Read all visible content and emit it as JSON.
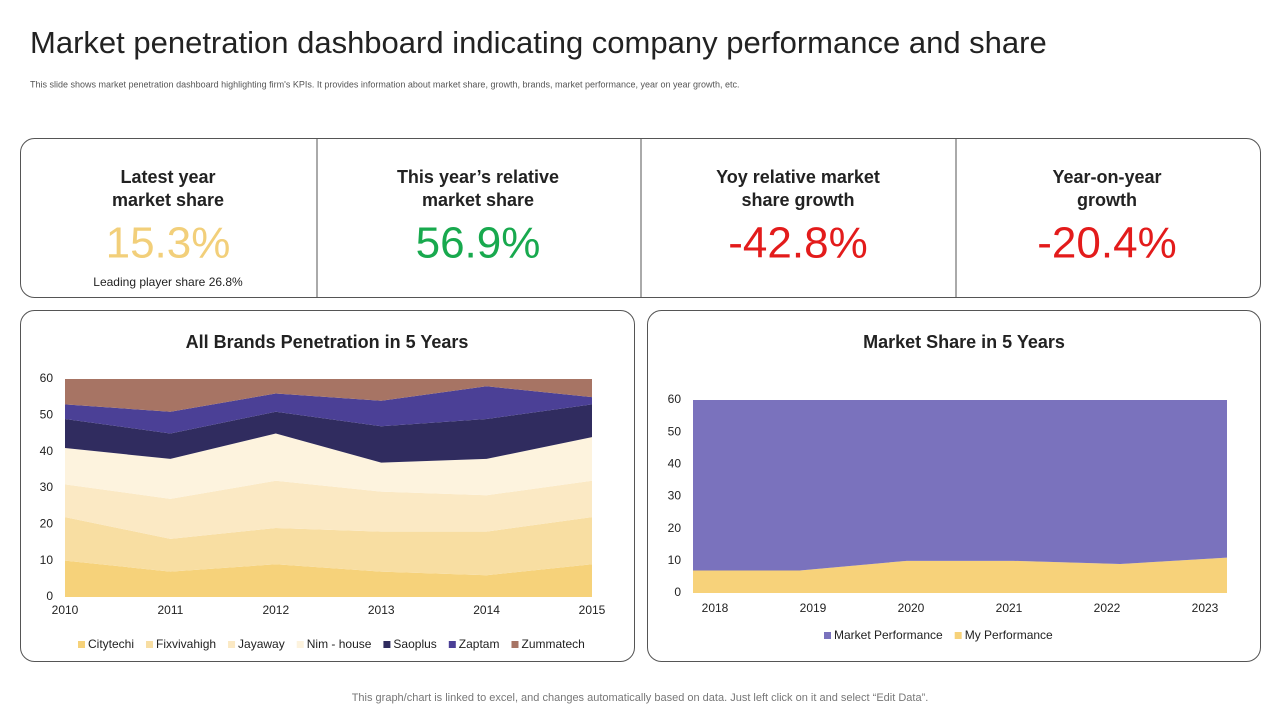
{
  "header": {
    "title": "Market penetration dashboard indicating company performance and share",
    "subtitle": "This slide shows market penetration dashboard highlighting  firm's KPIs.  It provides information about market share, growth, brands, market performance, year on year growth, etc."
  },
  "kpis": [
    {
      "label": [
        "Latest year",
        "market share"
      ],
      "value": "15.3%",
      "color": "#f2cf7a",
      "note": "Leading player share 26.8%"
    },
    {
      "label": [
        "This year’s relative",
        "market share"
      ],
      "value": "56.9%",
      "color": "#18a94e"
    },
    {
      "label": [
        "Yoy relative market",
        "share growth"
      ],
      "value": "-42.8%",
      "color": "#e31b1b"
    },
    {
      "label": [
        "Year-on-year",
        "growth"
      ],
      "value": "-20.4%",
      "color": "#e31b1b"
    }
  ],
  "chart_data": [
    {
      "type": "stacked_area",
      "title": "All Brands Penetration in 5 Years",
      "x": [
        2010,
        2011,
        2012,
        2013,
        2014,
        2015
      ],
      "xlim": [
        2010,
        2015
      ],
      "ylim": [
        0,
        60
      ],
      "yticks": [
        0,
        10,
        20,
        30,
        40,
        50,
        60
      ],
      "series": [
        {
          "name": "Citytechi",
          "color": "#f6d27a",
          "values": [
            10,
            7,
            9,
            7,
            6,
            9
          ]
        },
        {
          "name": "Fixvivahigh",
          "color": "#f8dea2",
          "values": [
            12,
            9,
            10,
            11,
            12,
            13
          ]
        },
        {
          "name": "Jayaway",
          "color": "#fbe9c4",
          "values": [
            9,
            11,
            13,
            11,
            10,
            10
          ]
        },
        {
          "name": "Nim - house",
          "color": "#fdf3de",
          "values": [
            10,
            11,
            13,
            8,
            10,
            12
          ]
        },
        {
          "name": "Saoplus",
          "color": "#302c5f",
          "values": [
            8,
            7,
            6,
            10,
            11,
            9
          ]
        },
        {
          "name": "Zaptam",
          "color": "#4b4096",
          "values": [
            4,
            6,
            5,
            7,
            9,
            2
          ]
        },
        {
          "name": "Zummatech",
          "color": "#a77464",
          "values": [
            7,
            9,
            4,
            6,
            2,
            5
          ]
        }
      ]
    },
    {
      "type": "stacked_area",
      "title": "Market Share in 5 Years",
      "x": [
        2018,
        2019,
        2020,
        2021,
        2022,
        2023
      ],
      "xlim": [
        2018,
        2023
      ],
      "ylim": [
        0,
        60
      ],
      "yticks": [
        0,
        10,
        20,
        30,
        40,
        50,
        60
      ],
      "series": [
        {
          "name": "My Performance",
          "color": "#f7d27a",
          "values": [
            7,
            7,
            10,
            10,
            9,
            11
          ]
        },
        {
          "name": "Market Performance",
          "color": "#7a72bd",
          "values": [
            53,
            53,
            50,
            50,
            51,
            49
          ]
        }
      ]
    }
  ],
  "footer": "This graph/chart is linked to excel,  and changes automatically based on data. Just left click on it and select “Edit Data”."
}
